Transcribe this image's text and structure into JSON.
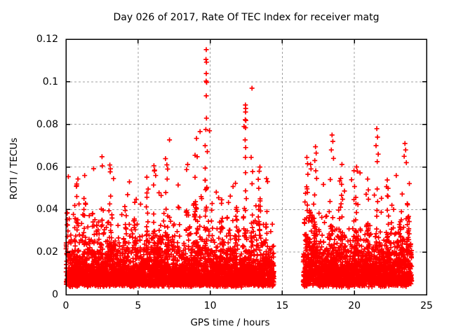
{
  "chart_data": {
    "type": "scatter",
    "title": "Day 026 of 2017, Rate Of TEC Index for receiver matg",
    "xlabel": "GPS time / hours",
    "ylabel": "ROTI / TECUs",
    "xlim": [
      0,
      25
    ],
    "ylim": [
      0,
      0.12
    ],
    "x_ticks": [
      {
        "v": 0,
        "label": "0"
      },
      {
        "v": 5,
        "label": "5"
      },
      {
        "v": 10,
        "label": "10"
      },
      {
        "v": 15,
        "label": "15"
      },
      {
        "v": 20,
        "label": "20"
      },
      {
        "v": 25,
        "label": "25"
      }
    ],
    "y_ticks": [
      {
        "v": 0,
        "label": "0"
      },
      {
        "v": 0.02,
        "label": "0.02"
      },
      {
        "v": 0.04,
        "label": "0.04"
      },
      {
        "v": 0.06,
        "label": "0.06"
      },
      {
        "v": 0.08,
        "label": "0.08"
      },
      {
        "v": 0.1,
        "label": "0.1"
      },
      {
        "v": 0.12,
        "label": "0.12"
      }
    ],
    "grid": {
      "on": true,
      "color": "#a0a0a0",
      "dash": "3,3"
    },
    "marker": {
      "shape": "plus",
      "color": "#ff0000",
      "size": 7,
      "stroke": 1.7
    },
    "seed": 42,
    "sample_step": 0.0035,
    "base_y": 0.0045,
    "tail_scale": 0.0062,
    "fuzz_cap": 0.062,
    "segments": [
      {
        "start": 0.01,
        "end": 14.42,
        "boost": 1.0
      },
      {
        "start": 16.45,
        "end": 23.97,
        "boost": 1.12
      }
    ],
    "bursts": [
      [
        0.1,
        0.1,
        1.0
      ],
      [
        0.8,
        0.15,
        1.2
      ],
      [
        1.3,
        0.1,
        0.9
      ],
      [
        1.9,
        0.12,
        1.1
      ],
      [
        2.5,
        0.08,
        1.0
      ],
      [
        3.1,
        0.15,
        1.3
      ],
      [
        4.1,
        0.12,
        1.0
      ],
      [
        4.8,
        0.1,
        0.8
      ],
      [
        5.6,
        0.12,
        1.0
      ],
      [
        6.1,
        0.1,
        1.4
      ],
      [
        6.5,
        0.08,
        1.1
      ],
      [
        7.0,
        0.12,
        1.5
      ],
      [
        7.8,
        0.1,
        0.9
      ],
      [
        8.4,
        0.1,
        1.0
      ],
      [
        9.0,
        0.12,
        1.5
      ],
      [
        9.7,
        0.1,
        1.8
      ],
      [
        10.1,
        0.08,
        1.2
      ],
      [
        10.8,
        0.1,
        1.1
      ],
      [
        11.3,
        0.1,
        1.0
      ],
      [
        11.8,
        0.1,
        1.2
      ],
      [
        12.45,
        0.1,
        1.6
      ],
      [
        12.9,
        0.08,
        1.2
      ],
      [
        13.4,
        0.1,
        1.3
      ],
      [
        13.9,
        0.08,
        0.9
      ],
      [
        16.7,
        0.15,
        1.6
      ],
      [
        17.0,
        0.1,
        1.2
      ],
      [
        17.3,
        0.12,
        1.4
      ],
      [
        18.4,
        0.12,
        1.3
      ],
      [
        19.1,
        0.1,
        0.9
      ],
      [
        20.1,
        0.12,
        1.2
      ],
      [
        20.9,
        0.1,
        1.3
      ],
      [
        21.5,
        0.1,
        1.5
      ],
      [
        22.3,
        0.1,
        0.9
      ],
      [
        23.2,
        0.12,
        1.2
      ],
      [
        23.7,
        0.1,
        1.3
      ]
    ],
    "outliers": [
      [
        9.73,
        0.1151
      ],
      [
        9.71,
        0.1105
      ],
      [
        9.74,
        0.1092
      ],
      [
        9.73,
        0.1039
      ],
      [
        9.72,
        0.1003
      ],
      [
        9.75,
        0.0997
      ],
      [
        9.73,
        0.0934
      ],
      [
        9.74,
        0.0829
      ],
      [
        9.7,
        0.0776
      ],
      [
        9.95,
        0.077
      ],
      [
        9.65,
        0.07
      ],
      [
        9.8,
        0.0672
      ],
      [
        9.3,
        0.0766
      ],
      [
        12.44,
        0.0891
      ],
      [
        12.46,
        0.0875
      ],
      [
        12.45,
        0.0858
      ],
      [
        12.43,
        0.0822
      ],
      [
        12.47,
        0.0818
      ],
      [
        12.45,
        0.0784
      ],
      [
        12.42,
        0.0727
      ],
      [
        12.46,
        0.0691
      ],
      [
        12.44,
        0.0645
      ],
      [
        12.84,
        0.0645
      ],
      [
        12.45,
        0.0573
      ],
      [
        12.9,
        0.097
      ],
      [
        12.35,
        0.079
      ],
      [
        2.5,
        0.0648
      ],
      [
        2.52,
        0.0605
      ],
      [
        6.1,
        0.0606
      ],
      [
        6.15,
        0.0585
      ],
      [
        6.22,
        0.056
      ],
      [
        6.9,
        0.0639
      ],
      [
        7.0,
        0.061
      ],
      [
        7.05,
        0.059
      ],
      [
        7.18,
        0.0727
      ],
      [
        7.02,
        0.0543
      ],
      [
        9.05,
        0.0734
      ],
      [
        8.95,
        0.0655
      ],
      [
        9.1,
        0.0648
      ],
      [
        1.3,
        0.056
      ],
      [
        3.3,
        0.0545
      ],
      [
        4.4,
        0.053
      ],
      [
        13.4,
        0.058
      ],
      [
        13.9,
        0.0545
      ],
      [
        0.75,
        0.052
      ],
      [
        17.3,
        0.0695
      ],
      [
        17.35,
        0.0665
      ],
      [
        17.25,
        0.063
      ],
      [
        16.7,
        0.0645
      ],
      [
        16.75,
        0.0615
      ],
      [
        18.45,
        0.075
      ],
      [
        18.5,
        0.072
      ],
      [
        18.4,
        0.068
      ],
      [
        18.55,
        0.064
      ],
      [
        20.15,
        0.06
      ],
      [
        20.2,
        0.058
      ],
      [
        21.55,
        0.078
      ],
      [
        21.6,
        0.074
      ],
      [
        21.5,
        0.07
      ],
      [
        21.65,
        0.066
      ],
      [
        21.58,
        0.0625
      ],
      [
        23.5,
        0.071
      ],
      [
        23.55,
        0.068
      ],
      [
        23.45,
        0.065
      ],
      [
        23.6,
        0.062
      ],
      [
        22.9,
        0.056
      ],
      [
        19.8,
        0.054
      ]
    ]
  }
}
